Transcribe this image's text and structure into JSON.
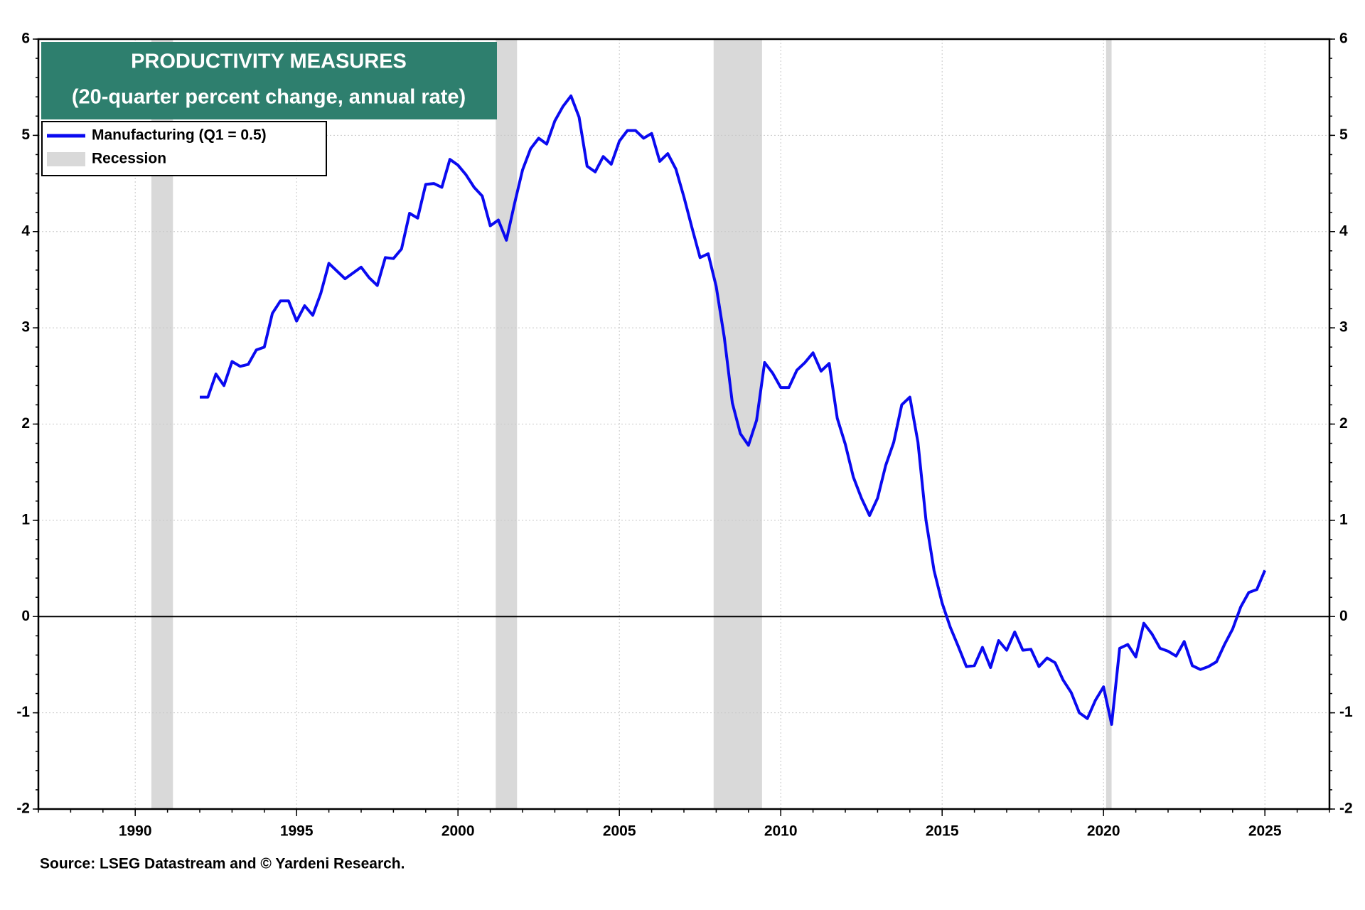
{
  "chart_data": {
    "type": "line",
    "title": "PRODUCTIVITY MEASURES",
    "subtitle": "(20-quarter percent change, annual rate)",
    "source": "Source: LSEG Datastream and © Yardeni Research.",
    "xlim": [
      1987,
      2027
    ],
    "xticks": [
      1990,
      1995,
      2000,
      2005,
      2010,
      2015,
      2020,
      2025
    ],
    "ylim": [
      -2,
      6
    ],
    "yticks": [
      -2,
      -1,
      0,
      1,
      2,
      3,
      4,
      5,
      6
    ],
    "grid": true,
    "legend": "upper left",
    "recession_label": "Recession",
    "recession_color": "#d9d9d9",
    "recessions": [
      [
        1990.5,
        1991.17
      ],
      [
        2001.17,
        2001.83
      ],
      [
        2007.92,
        2009.42
      ],
      [
        2020.08,
        2020.25
      ]
    ],
    "x": [
      1992,
      1992.25,
      1992.5,
      1992.75,
      1993,
      1993.25,
      1993.5,
      1993.75,
      1994,
      1994.25,
      1994.5,
      1994.75,
      1995,
      1995.25,
      1995.5,
      1995.75,
      1996,
      1996.25,
      1996.5,
      1996.75,
      1997,
      1997.25,
      1997.5,
      1997.75,
      1998,
      1998.25,
      1998.5,
      1998.75,
      1999,
      1999.25,
      1999.5,
      1999.75,
      2000,
      2000.25,
      2000.5,
      2000.75,
      2001,
      2001.25,
      2001.5,
      2001.75,
      2002,
      2002.25,
      2002.5,
      2002.75,
      2003,
      2003.25,
      2003.5,
      2003.75,
      2004,
      2004.25,
      2004.5,
      2004.75,
      2005,
      2005.25,
      2005.5,
      2005.75,
      2006,
      2006.25,
      2006.5,
      2006.75,
      2007,
      2007.25,
      2007.5,
      2007.75,
      2008,
      2008.25,
      2008.5,
      2008.75,
      2009,
      2009.25,
      2009.5,
      2009.75,
      2010,
      2010.25,
      2010.5,
      2010.75,
      2011,
      2011.25,
      2011.5,
      2011.75,
      2012,
      2012.25,
      2012.5,
      2012.75,
      2013,
      2013.25,
      2013.5,
      2013.75,
      2014,
      2014.25,
      2014.5,
      2014.75,
      2015,
      2015.25,
      2015.5,
      2015.75,
      2016,
      2016.25,
      2016.5,
      2016.75,
      2017,
      2017.25,
      2017.5,
      2017.75,
      2018,
      2018.25,
      2018.5,
      2018.75,
      2019,
      2019.25,
      2019.5,
      2019.75,
      2020,
      2020.25,
      2020.5,
      2020.75,
      2021,
      2021.25,
      2021.5,
      2021.75,
      2022,
      2022.25,
      2022.5,
      2022.75,
      2023,
      2023.25,
      2023.5,
      2023.75,
      2024,
      2024.25,
      2024.5,
      2024.75,
      2025
    ],
    "series": [
      {
        "name": "Manufacturing  (Q1 = 0.5)",
        "color": "#0a0af0",
        "values": [
          2.28,
          2.28,
          2.52,
          2.4,
          2.65,
          2.6,
          2.62,
          2.77,
          2.8,
          3.15,
          3.28,
          3.28,
          3.07,
          3.23,
          3.13,
          3.36,
          3.67,
          3.59,
          3.51,
          3.57,
          3.63,
          3.52,
          3.44,
          3.73,
          3.72,
          3.82,
          4.19,
          4.14,
          4.49,
          4.5,
          4.46,
          4.75,
          4.69,
          4.59,
          4.46,
          4.37,
          4.06,
          4.12,
          3.91,
          4.29,
          4.64,
          4.86,
          4.97,
          4.91,
          5.15,
          5.3,
          5.41,
          5.19,
          4.68,
          4.62,
          4.78,
          4.7,
          4.94,
          5.05,
          5.05,
          4.97,
          5.02,
          4.73,
          4.81,
          4.65,
          4.36,
          4.04,
          3.73,
          3.77,
          3.43,
          2.9,
          2.22,
          1.9,
          1.78,
          2.04,
          2.64,
          2.53,
          2.38,
          2.38,
          2.56,
          2.64,
          2.74,
          2.55,
          2.63,
          2.06,
          1.79,
          1.45,
          1.23,
          1.05,
          1.23,
          1.57,
          1.81,
          2.2,
          2.28,
          1.81,
          1.0,
          0.48,
          0.14,
          -0.11,
          -0.31,
          -0.52,
          -0.51,
          -0.32,
          -0.53,
          -0.25,
          -0.35,
          -0.16,
          -0.35,
          -0.34,
          -0.52,
          -0.43,
          -0.48,
          -0.66,
          -0.79,
          -1.0,
          -1.06,
          -0.87,
          -0.73,
          -1.12,
          -0.33,
          -0.29,
          -0.42,
          -0.07,
          -0.18,
          -0.33,
          -0.36,
          -0.41,
          -0.26,
          -0.51,
          -0.55,
          -0.52,
          -0.47,
          -0.29,
          -0.13,
          0.1,
          0.25,
          0.28,
          0.48
        ]
      }
    ]
  }
}
